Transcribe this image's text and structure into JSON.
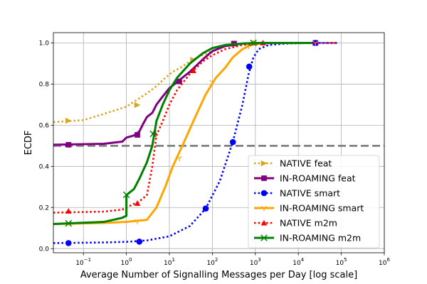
{
  "chart_data": {
    "type": "line",
    "title": "",
    "xlabel": "Average Number of Signalling Messages per Day [log scale]",
    "ylabel": "ECDF",
    "xscale": "log",
    "xlim": [
      0.02,
      1000000
    ],
    "ylim": [
      -0.02,
      1.05
    ],
    "grid": true,
    "legend_position": "lower-right",
    "x_ticks": [
      {
        "value": 0.1,
        "base": "10",
        "exp": "−1"
      },
      {
        "value": 1,
        "base": "10",
        "exp": "0"
      },
      {
        "value": 10,
        "base": "10",
        "exp": "1"
      },
      {
        "value": 100,
        "base": "10",
        "exp": "2"
      },
      {
        "value": 1000,
        "base": "10",
        "exp": "3"
      },
      {
        "value": 10000,
        "base": "10",
        "exp": "4"
      },
      {
        "value": 100000,
        "base": "10",
        "exp": "5"
      },
      {
        "value": 1000000,
        "base": "10",
        "exp": "6"
      }
    ],
    "y_ticks": [
      {
        "value": 0.0,
        "label": "0.0"
      },
      {
        "value": 0.2,
        "label": "0.2"
      },
      {
        "value": 0.4,
        "label": "0.4"
      },
      {
        "value": 0.6,
        "label": "0.6"
      },
      {
        "value": 0.8,
        "label": "0.8"
      },
      {
        "value": 1.0,
        "label": "1.0"
      }
    ],
    "reference_line": {
      "y": 0.5,
      "color": "#808080",
      "style": "dashed"
    },
    "series": [
      {
        "name": "NATIVE feat",
        "color": "#DAA520",
        "linestyle": "dotted",
        "marker": "triangle-right",
        "points": [
          [
            0.02,
            0.615
          ],
          [
            0.1,
            0.625
          ],
          [
            0.3,
            0.655
          ],
          [
            1,
            0.69
          ],
          [
            3,
            0.755
          ],
          [
            5,
            0.79
          ],
          [
            8,
            0.83
          ],
          [
            12,
            0.86
          ],
          [
            20,
            0.885
          ],
          [
            30,
            0.91
          ],
          [
            50,
            0.935
          ],
          [
            100,
            0.96
          ],
          [
            200,
            0.985
          ],
          [
            500,
            0.997
          ],
          [
            1000,
            1.0
          ],
          [
            20000,
            1.0
          ]
        ],
        "markers": [
          [
            0.045,
            0.622
          ],
          [
            1.8,
            0.698
          ],
          [
            36,
            0.918
          ],
          [
            320,
            0.995
          ],
          [
            1000,
            1.0
          ]
        ]
      },
      {
        "name": "IN-ROAMING feat",
        "color": "#800080",
        "linestyle": "solid",
        "marker": "square",
        "points": [
          [
            0.02,
            0.505
          ],
          [
            0.3,
            0.51
          ],
          [
            0.8,
            0.52
          ],
          [
            1,
            0.54
          ],
          [
            1.5,
            0.55
          ],
          [
            2,
            0.57
          ],
          [
            2.5,
            0.61
          ],
          [
            3,
            0.64
          ],
          [
            4,
            0.66
          ],
          [
            5,
            0.7
          ],
          [
            7,
            0.74
          ],
          [
            10,
            0.78
          ],
          [
            15,
            0.81
          ],
          [
            30,
            0.86
          ],
          [
            60,
            0.92
          ],
          [
            100,
            0.96
          ],
          [
            200,
            0.985
          ],
          [
            500,
            0.997
          ],
          [
            1000,
            1.0
          ],
          [
            20000,
            1.0
          ]
        ],
        "markers": [
          [
            0.045,
            0.505
          ],
          [
            1.8,
            0.553
          ],
          [
            17,
            0.813
          ],
          [
            320,
            0.997
          ],
          [
            25000,
            1.0
          ]
        ]
      },
      {
        "name": "NATIVE smart",
        "color": "#0000FF",
        "linestyle": "dotted",
        "marker": "circle",
        "points": [
          [
            0.02,
            0.027
          ],
          [
            0.3,
            0.03
          ],
          [
            1,
            0.033
          ],
          [
            3,
            0.04
          ],
          [
            10,
            0.06
          ],
          [
            30,
            0.11
          ],
          [
            70,
            0.195
          ],
          [
            150,
            0.33
          ],
          [
            300,
            0.52
          ],
          [
            500,
            0.7
          ],
          [
            700,
            0.85
          ],
          [
            900,
            0.93
          ],
          [
            1200,
            0.97
          ],
          [
            2000,
            0.99
          ],
          [
            5000,
            0.997
          ],
          [
            20000,
            1.0
          ],
          [
            80000,
            1.0
          ]
        ],
        "markers": [
          [
            0.045,
            0.027
          ],
          [
            2,
            0.034
          ],
          [
            70,
            0.195
          ],
          [
            300,
            0.518
          ],
          [
            720,
            0.885
          ],
          [
            25000,
            1.0
          ]
        ]
      },
      {
        "name": "IN-ROAMING smart",
        "color": "#FFA500",
        "linestyle": "solid",
        "marker": "tri-down",
        "points": [
          [
            0.02,
            0.12
          ],
          [
            0.3,
            0.125
          ],
          [
            1,
            0.13
          ],
          [
            3,
            0.14
          ],
          [
            5,
            0.2
          ],
          [
            8,
            0.3
          ],
          [
            12,
            0.4
          ],
          [
            20,
            0.5
          ],
          [
            40,
            0.64
          ],
          [
            70,
            0.75
          ],
          [
            120,
            0.83
          ],
          [
            200,
            0.88
          ],
          [
            300,
            0.93
          ],
          [
            500,
            0.97
          ],
          [
            800,
            0.99
          ],
          [
            1500,
            1.0
          ],
          [
            20000,
            1.0
          ]
        ],
        "markers": [
          [
            0.045,
            0.125
          ],
          [
            1.8,
            0.134
          ],
          [
            17,
            0.44
          ],
          [
            100,
            0.81
          ],
          [
            700,
            0.985
          ],
          [
            25000,
            1.0
          ]
        ]
      },
      {
        "name": "NATIVE m2m",
        "color": "#FF0000",
        "linestyle": "dotted",
        "marker": "triangle-up",
        "points": [
          [
            0.02,
            0.175
          ],
          [
            0.3,
            0.18
          ],
          [
            0.8,
            0.19
          ],
          [
            1,
            0.2
          ],
          [
            2,
            0.23
          ],
          [
            3,
            0.26
          ],
          [
            4,
            0.4
          ],
          [
            5,
            0.55
          ],
          [
            7,
            0.62
          ],
          [
            10,
            0.7
          ],
          [
            15,
            0.77
          ],
          [
            30,
            0.85
          ],
          [
            60,
            0.91
          ],
          [
            100,
            0.94
          ],
          [
            200,
            0.97
          ],
          [
            500,
            0.99
          ],
          [
            1500,
            0.998
          ],
          [
            10000,
            1.0
          ],
          [
            80000,
            1.0
          ]
        ],
        "markers": [
          [
            0.045,
            0.182
          ],
          [
            1.8,
            0.22
          ],
          [
            4.5,
            0.565
          ],
          [
            36,
            0.865
          ],
          [
            1500,
            1.0
          ]
        ]
      },
      {
        "name": "IN-ROAMING m2m",
        "color": "#008000",
        "linestyle": "solid",
        "marker": "x",
        "points": [
          [
            0.02,
            0.12
          ],
          [
            0.3,
            0.13
          ],
          [
            0.8,
            0.15
          ],
          [
            1,
            0.16
          ],
          [
            1,
            0.26
          ],
          [
            1.5,
            0.29
          ],
          [
            2,
            0.34
          ],
          [
            3,
            0.42
          ],
          [
            4,
            0.5
          ],
          [
            5,
            0.62
          ],
          [
            7,
            0.7
          ],
          [
            10,
            0.77
          ],
          [
            15,
            0.83
          ],
          [
            30,
            0.9
          ],
          [
            60,
            0.95
          ],
          [
            100,
            0.975
          ],
          [
            200,
            0.99
          ],
          [
            500,
            0.997
          ],
          [
            1000,
            1.0
          ],
          [
            20000,
            1.0
          ]
        ],
        "markers": [
          [
            0.045,
            0.123
          ],
          [
            1,
            0.262
          ],
          [
            4.2,
            0.558
          ],
          [
            900,
            1.0
          ]
        ]
      }
    ]
  }
}
